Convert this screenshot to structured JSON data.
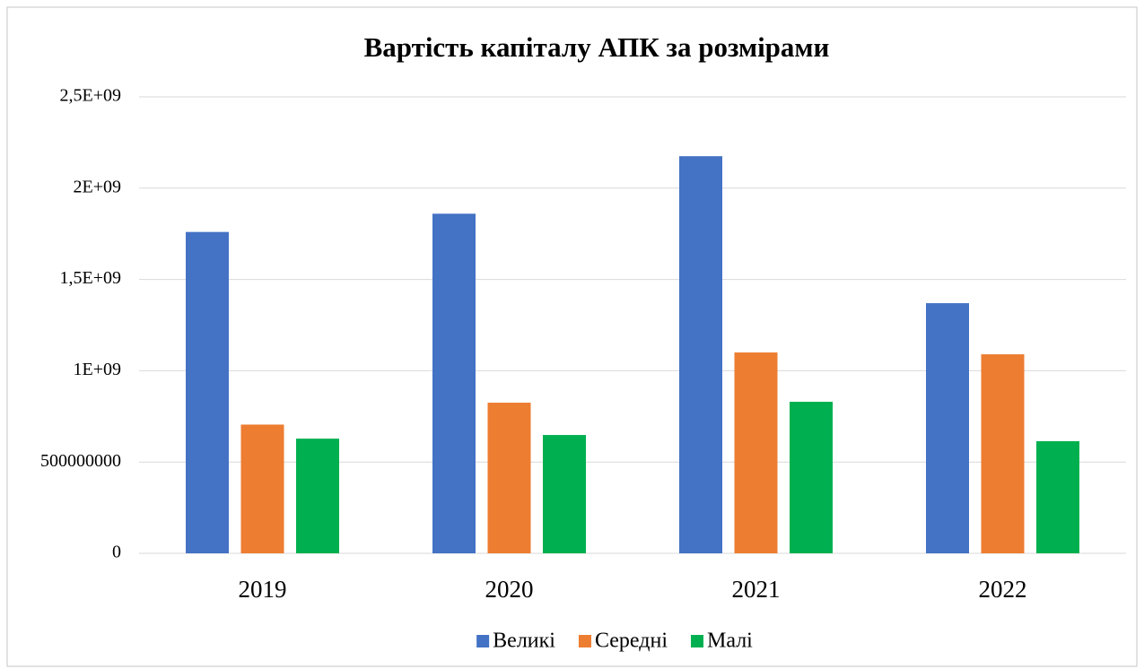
{
  "chart_data": {
    "type": "bar",
    "title": "Вартість капіталу АПК за розмірами",
    "categories": [
      "2019",
      "2020",
      "2021",
      "2022"
    ],
    "series": [
      {
        "name": "Великі",
        "color": "#4472c4",
        "values": [
          1760000000,
          1860000000,
          2175000000,
          1370000000
        ]
      },
      {
        "name": "Середні",
        "color": "#ed7d31",
        "values": [
          705000000,
          825000000,
          1100000000,
          1090000000
        ]
      },
      {
        "name": "Малі",
        "color": "#00b050",
        "values": [
          628000000,
          648000000,
          830000000,
          614000000
        ]
      }
    ],
    "ylim": [
      0,
      2500000000
    ],
    "yticks": [
      0,
      500000000,
      {
        "value": 1000000000,
        "label": "1E+09"
      },
      {
        "value": 1500000000,
        "label": "1,5E+09"
      },
      {
        "value": 2000000000,
        "label": "2E+09"
      },
      {
        "value": 2500000000,
        "label": "2,5E+09"
      }
    ],
    "grid": true,
    "legend": "bottom"
  }
}
